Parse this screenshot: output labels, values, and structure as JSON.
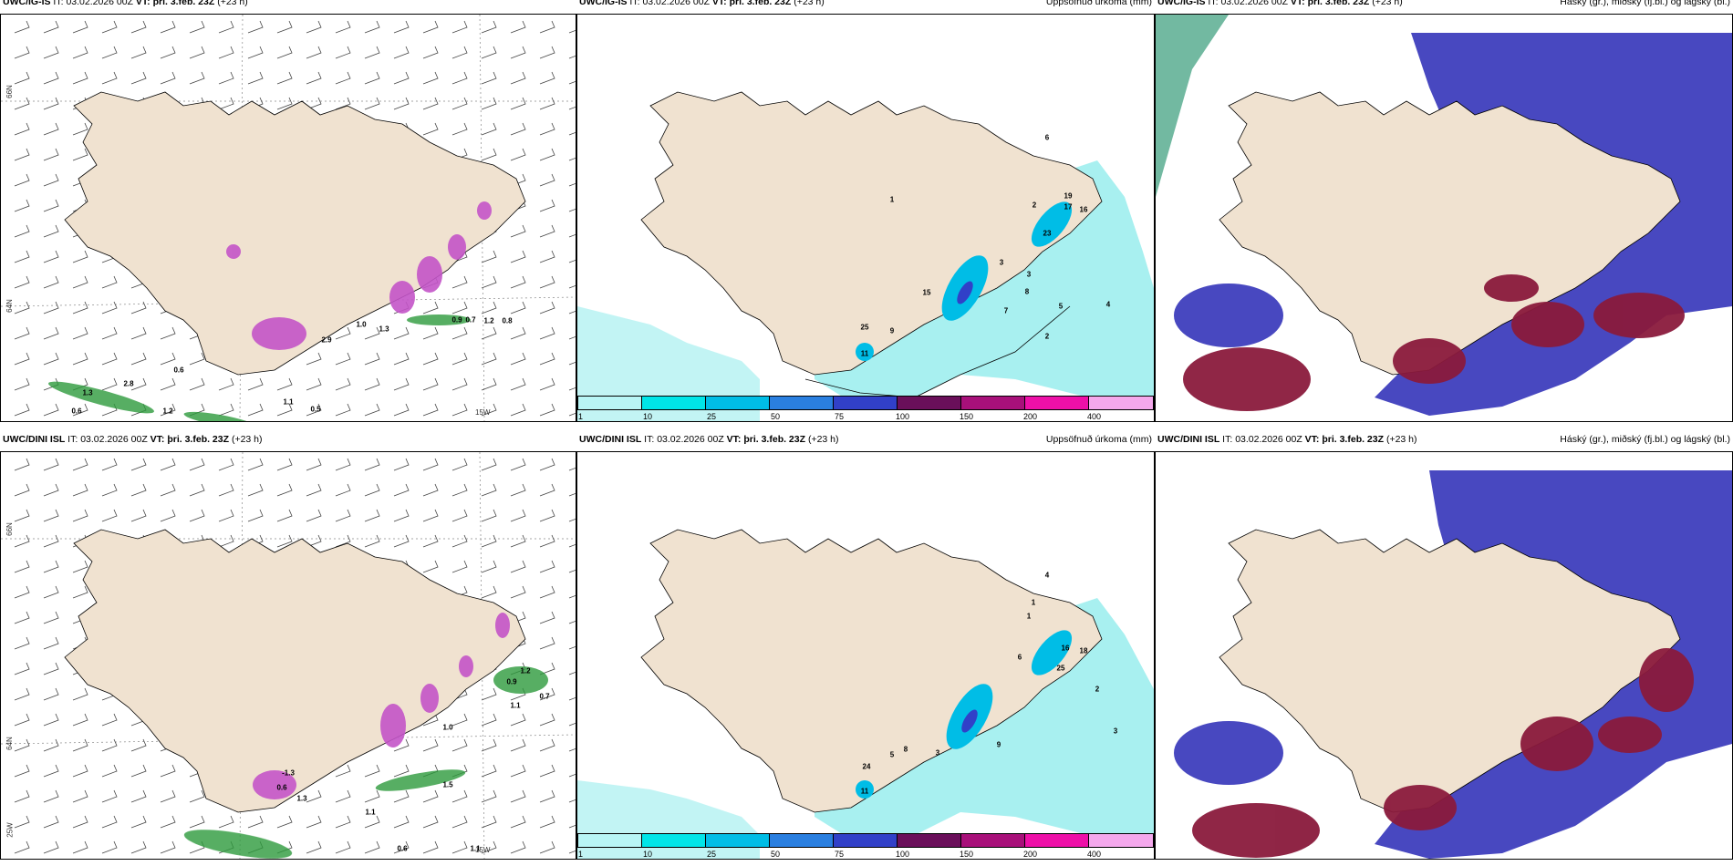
{
  "rows": [
    {
      "model": "UWC/IG-IS",
      "it_label": "IT:",
      "it_value": "03.02.2026 00Z",
      "vt_label": "VT:",
      "vt_value": "þri. 3.feb. 23Z",
      "lead": "(+23 h)"
    },
    {
      "model": "UWC/DINI ISL",
      "it_label": "IT:",
      "it_value": "03.02.2026 00Z",
      "vt_label": "VT:",
      "vt_value": "þri. 3.feb. 23Z",
      "lead": "(+23 h)"
    }
  ],
  "panel_titles": {
    "precip": "Uppsöfnuð úrkoma (mm)",
    "clouds": "Háský (gr.), miðský (fj.bl.) og lágský (bl.)"
  },
  "legend": {
    "ticks": [
      "1",
      "10",
      "25",
      "50",
      "75",
      "100",
      "150",
      "200",
      "400"
    ],
    "colors": [
      "#b8f5f5",
      "#00e5e8",
      "#00bde6",
      "#2a7fe0",
      "#3140c8",
      "#6a0f5a",
      "#a8107a",
      "#ee10a8",
      "#f4a8ec"
    ]
  },
  "grid_labels": {
    "lat66": "66N",
    "lat64": "64N",
    "lon25": "25W",
    "lon15": "15W"
  },
  "colors": {
    "land": "#f0e2d0",
    "sea": "#ffffff",
    "precip_light": "#a8f0f0",
    "snow_magenta": "#c455c8",
    "rain_green": "#2d9a3c",
    "high_cloud": "#4848c0",
    "low_cloud_red": "#8a1a3c",
    "coastline": "#000000"
  },
  "wind_values": {
    "top": [
      "1.0",
      "1.3",
      "2.9",
      "0.9",
      "0.7",
      "1.2",
      "0.8",
      "0.6",
      "2.8",
      "1.3",
      "1.2",
      "0.5",
      "0.6",
      "1.1"
    ],
    "bottom": [
      "-1.3",
      "0.6",
      "1.3",
      "1.1",
      "1.2",
      "0.7",
      "0.9",
      "1.1",
      "1.5",
      "1.0",
      "0.6",
      "1.1"
    ]
  },
  "precip_values": {
    "top": [
      "1",
      "6",
      "2",
      "19",
      "17",
      "16",
      "23",
      "15",
      "25",
      "11",
      "9",
      "3",
      "5",
      "7",
      "8",
      "4",
      "2",
      "3"
    ],
    "bottom": [
      "4",
      "1",
      "16",
      "18",
      "25",
      "24",
      "11",
      "6",
      "3",
      "5",
      "8",
      "9",
      "2",
      "1",
      "3"
    ]
  }
}
